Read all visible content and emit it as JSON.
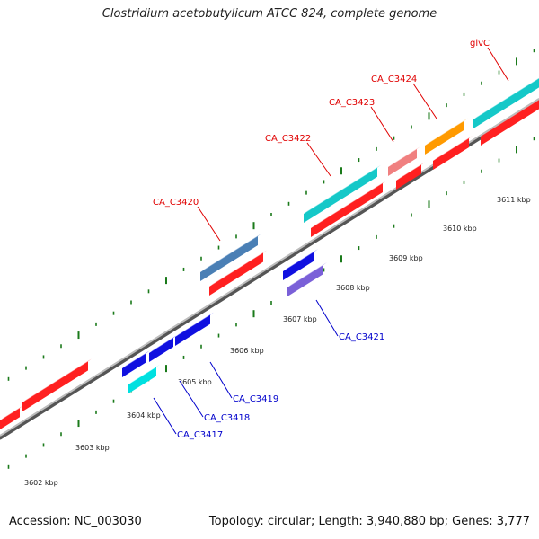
{
  "title": "Clostridium acetobutylicum ATCC 824, complete genome",
  "footer": {
    "accession": "Accession: NC_003030",
    "summary": "Topology: circular; Length: 3,940,880 bp; Genes: 3,777"
  },
  "colors": {
    "backbone": "#888888",
    "forward_label": "#e00000",
    "reverse_label": "#0000cc",
    "tick": "#1a7a1a"
  },
  "scale_ticks": [
    {
      "label": "3602 kbp"
    },
    {
      "label": "3603 kbp"
    },
    {
      "label": "3604 kbp"
    },
    {
      "label": "3605 kbp"
    },
    {
      "label": "3606 kbp"
    },
    {
      "label": "3607 kbp"
    },
    {
      "label": "3608 kbp"
    },
    {
      "label": "3609 kbp"
    },
    {
      "label": "3610 kbp"
    },
    {
      "label": "3611 kbp"
    }
  ],
  "gene_labels": [
    {
      "text": "CA_C3420",
      "strand": "forward"
    },
    {
      "text": "CA_C3422",
      "strand": "forward"
    },
    {
      "text": "CA_C3423",
      "strand": "forward"
    },
    {
      "text": "CA_C3424",
      "strand": "forward"
    },
    {
      "text": "glvC",
      "strand": "forward"
    },
    {
      "text": "CA_C3421",
      "strand": "reverse"
    },
    {
      "text": "CA_C3419",
      "strand": "reverse"
    },
    {
      "text": "CA_C3418",
      "strand": "reverse"
    },
    {
      "text": "CA_C3417",
      "strand": "reverse"
    }
  ]
}
